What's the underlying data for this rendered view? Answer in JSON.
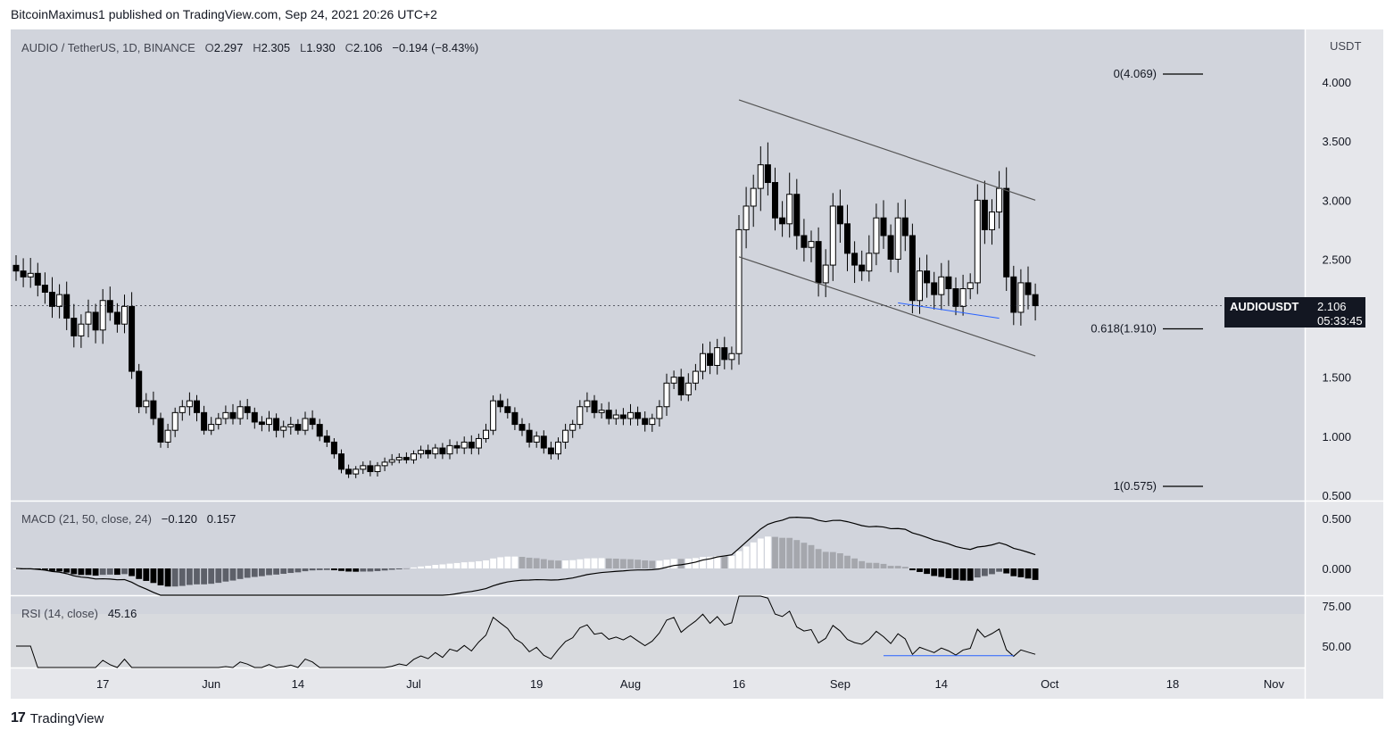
{
  "publisher_line": "BitcoinMaximus1 published on TradingView.com, Sep 24, 2021 20:26 UTC+2",
  "footer": {
    "brand": "TradingView",
    "logo_glyph": "17"
  },
  "legend": {
    "symbol": "AUDIO / TetherUS, 1D, BINANCE",
    "open_label": "O",
    "open": "2.297",
    "high_label": "H",
    "high": "2.305",
    "low_label": "L",
    "low": "1.930",
    "close_label": "C",
    "close": "2.106",
    "change": "−0.194 (−8.43%)"
  },
  "price_badge": {
    "symbol": "AUDIOUSDT",
    "price": "2.106",
    "countdown": "05:33:45"
  },
  "colors": {
    "pane_bg": "#d1d4dc",
    "up": "#ffffff",
    "down": "#000000",
    "channel": "#555555",
    "support": "#2962ff"
  },
  "chart_data": [
    {
      "type": "candlestick",
      "title": "AUDIO / TetherUS, 1D, BINANCE",
      "unit": "USDT",
      "x_tick_labels": [
        "17",
        "Jun",
        "14",
        "Jul",
        "19",
        "Aug",
        "16",
        "Sep",
        "14",
        "Oct",
        "18",
        "Nov"
      ],
      "y_tick_labels": [
        "4.000",
        "3.500",
        "3.000",
        "2.500",
        "2.000",
        "1.500",
        "1.000",
        "0.500"
      ],
      "ylim": [
        0.45,
        4.4
      ],
      "close_series": [
        2.4,
        2.35,
        2.38,
        2.28,
        2.22,
        2.1,
        2.2,
        2.0,
        1.85,
        1.95,
        2.05,
        1.9,
        2.15,
        2.05,
        1.95,
        2.1,
        1.55,
        1.25,
        1.3,
        1.15,
        0.95,
        1.05,
        1.2,
        1.25,
        1.3,
        1.2,
        1.05,
        1.1,
        1.15,
        1.2,
        1.15,
        1.25,
        1.2,
        1.12,
        1.1,
        1.15,
        1.05,
        1.08,
        1.1,
        1.05,
        1.15,
        1.1,
        1.0,
        0.95,
        0.85,
        0.72,
        0.68,
        0.72,
        0.75,
        0.7,
        0.75,
        0.78,
        0.8,
        0.82,
        0.8,
        0.85,
        0.88,
        0.85,
        0.9,
        0.85,
        0.92,
        0.9,
        0.95,
        0.9,
        0.98,
        1.05,
        1.3,
        1.25,
        1.2,
        1.1,
        1.05,
        0.95,
        1.0,
        0.9,
        0.85,
        0.95,
        1.05,
        1.1,
        1.25,
        1.3,
        1.2,
        1.22,
        1.15,
        1.18,
        1.15,
        1.2,
        1.15,
        1.1,
        1.15,
        1.25,
        1.45,
        1.5,
        1.35,
        1.45,
        1.55,
        1.7,
        1.6,
        1.75,
        1.65,
        1.7,
        2.75,
        2.95,
        3.1,
        3.3,
        3.15,
        2.85,
        2.8,
        3.05,
        2.7,
        2.6,
        2.65,
        2.3,
        2.45,
        2.95,
        2.8,
        2.55,
        2.45,
        2.4,
        2.55,
        2.85,
        2.7,
        2.5,
        2.85,
        2.7,
        2.15,
        2.4,
        2.3,
        2.2,
        2.35,
        2.25,
        2.1,
        2.25,
        2.3,
        3.0,
        2.75,
        2.9,
        3.1,
        2.35,
        2.05,
        2.3,
        2.2,
        2.106
      ],
      "fibonacci_levels": [
        {
          "label": "0(4.069)",
          "value": 4.069
        },
        {
          "label": "0.618(1.910)",
          "value": 1.91
        },
        {
          "label": "1(0.575)",
          "value": 0.575
        }
      ],
      "channel_upper": [
        [
          100,
          3.85
        ],
        [
          141,
          3.0
        ]
      ],
      "channel_lower": [
        [
          100,
          2.52
        ],
        [
          141,
          1.68
        ]
      ],
      "support_line": [
        [
          122,
          2.13
        ],
        [
          136,
          2.0
        ]
      ]
    },
    {
      "type": "bar",
      "title": "MACD (21, 50, close, 24)",
      "values_display": [
        "−0.120",
        "0.157"
      ],
      "y_tick_labels": [
        "0.500",
        "0.000"
      ],
      "ylim": [
        -0.2,
        0.6
      ]
    },
    {
      "type": "line",
      "title": "RSI (14, close)",
      "values_display": [
        "45.16"
      ],
      "y_tick_labels": [
        "75.00",
        "50.00"
      ],
      "ylim": [
        42,
        82
      ],
      "support_line": [
        [
          120,
          44.0
        ],
        [
          138,
          44.0
        ]
      ]
    }
  ]
}
